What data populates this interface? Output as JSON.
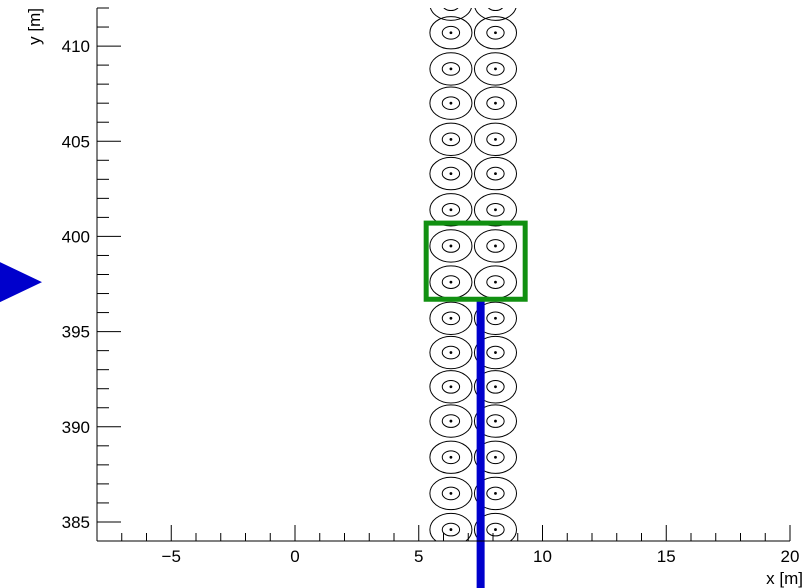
{
  "chart_data": {
    "type": "scatter",
    "title": "",
    "xlabel": "x [m]",
    "ylabel": "y [m]",
    "xlim": [
      -8,
      20
    ],
    "ylim": [
      384,
      412
    ],
    "x_ticks": [
      -5,
      0,
      5,
      10,
      15,
      20
    ],
    "x_tick_labels": [
      "−5",
      "0",
      "5",
      "10",
      "15",
      "20"
    ],
    "y_ticks": [
      385,
      390,
      395,
      400,
      405,
      410
    ],
    "y_tick_labels": [
      "385",
      "390",
      "395",
      "400",
      "405",
      "410"
    ],
    "grid": false,
    "legend": "none",
    "detector_columns_x": [
      6.3,
      8.1
    ],
    "detector_rows_y": [
      384.6,
      386.5,
      388.4,
      390.3,
      392.1,
      393.9,
      395.7,
      397.6,
      399.5,
      401.4,
      403.3,
      405.1,
      407.0,
      408.8,
      410.7,
      412.2
    ],
    "detector_outer_radius": 0.85,
    "detector_inner_radius": 0.35,
    "highlight_box": {
      "x": [
        5.3,
        9.3
      ],
      "y": [
        396.7,
        400.7
      ],
      "color": "#119011"
    },
    "beam_line": {
      "x": 7.5,
      "y_top": 396.7,
      "color": "#0000cc"
    },
    "beam_arrow": {
      "y": 397.6,
      "color": "#0000cc"
    },
    "colors": {
      "axis": "#000000",
      "detectors": "#000000"
    }
  }
}
